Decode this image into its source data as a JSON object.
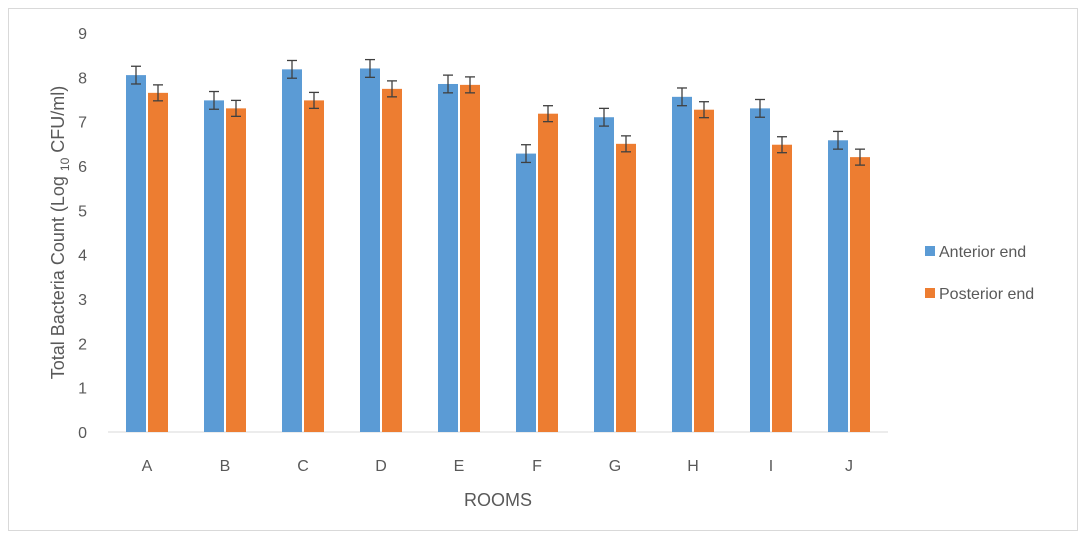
{
  "chart_data": {
    "type": "bar",
    "title": "",
    "xlabel": "ROOMS",
    "ylabel": {
      "prefix": "Total Bacteria Count (Log ",
      "subscript": "10",
      "suffix": " CFU/ml)"
    },
    "ylim": [
      0,
      9
    ],
    "yticks": [
      0,
      1,
      2,
      3,
      4,
      5,
      6,
      7,
      8,
      9
    ],
    "grid": false,
    "legend_position": "right",
    "categories": [
      "A",
      "B",
      "C",
      "D",
      "E",
      "F",
      "G",
      "H",
      "I",
      "J"
    ],
    "series": [
      {
        "name": "Anterior end",
        "color": "#5b9bd5",
        "values": [
          8.05,
          7.48,
          8.18,
          8.2,
          7.85,
          6.28,
          7.1,
          7.56,
          7.3,
          6.58
        ],
        "errors": [
          0.2,
          0.2,
          0.2,
          0.2,
          0.2,
          0.2,
          0.2,
          0.2,
          0.2,
          0.2
        ]
      },
      {
        "name": "Posterior end",
        "color": "#ed7d31",
        "values": [
          7.65,
          7.3,
          7.48,
          7.74,
          7.83,
          7.18,
          6.5,
          7.27,
          6.48,
          6.2
        ],
        "errors": [
          0.18,
          0.18,
          0.18,
          0.18,
          0.18,
          0.18,
          0.18,
          0.18,
          0.18,
          0.18
        ]
      }
    ]
  }
}
